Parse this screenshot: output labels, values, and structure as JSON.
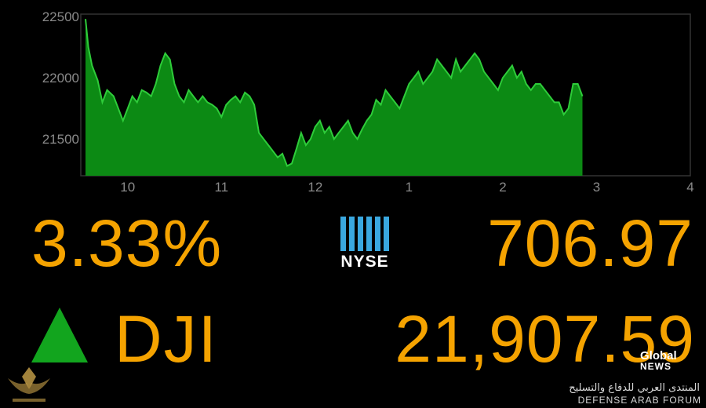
{
  "chart_data": {
    "type": "area",
    "x_unit": "hour",
    "x_ticks": [
      10,
      11,
      12,
      1,
      2,
      3,
      4
    ],
    "y_ticks": [
      21500,
      22000,
      22500
    ],
    "ylim": [
      21200,
      22520
    ],
    "grid": false,
    "series": [
      {
        "color": "#0c8a14",
        "x": [
          9.55,
          9.58,
          9.62,
          9.68,
          9.73,
          9.78,
          9.85,
          9.9,
          9.95,
          10.0,
          10.05,
          10.1,
          10.15,
          10.2,
          10.25,
          10.3,
          10.35,
          10.4,
          10.45,
          10.5,
          10.55,
          10.6,
          10.65,
          10.7,
          10.75,
          10.8,
          10.85,
          10.9,
          10.95,
          11.0,
          11.05,
          11.1,
          11.15,
          11.2,
          11.25,
          11.3,
          11.35,
          11.4,
          11.45,
          11.5,
          11.55,
          11.6,
          11.65,
          11.7,
          11.75,
          11.8,
          11.85,
          11.9,
          11.95,
          12.0,
          12.05,
          12.1,
          12.15,
          12.2,
          12.25,
          12.3,
          12.35,
          12.4,
          12.45,
          12.5,
          12.55,
          12.6,
          12.65,
          12.7,
          12.75,
          12.8,
          12.85,
          12.9,
          12.95,
          13.0,
          13.05,
          13.1,
          13.15,
          13.2,
          13.25,
          13.3,
          13.35,
          13.4,
          13.45,
          13.5,
          13.55,
          13.6,
          13.65,
          13.7,
          13.75,
          13.8,
          13.85,
          13.9,
          13.95,
          14.0,
          14.05,
          14.1,
          14.15,
          14.2,
          14.25,
          14.3,
          14.35,
          14.4,
          14.45,
          14.5,
          14.55,
          14.6,
          14.65,
          14.7,
          14.75,
          14.8,
          14.85
        ],
        "values": [
          22480,
          22250,
          22100,
          21980,
          21800,
          21900,
          21850,
          21750,
          21650,
          21750,
          21850,
          21800,
          21900,
          21880,
          21850,
          21950,
          22100,
          22200,
          22150,
          21950,
          21850,
          21800,
          21900,
          21850,
          21800,
          21850,
          21800,
          21780,
          21750,
          21680,
          21780,
          21820,
          21850,
          21800,
          21880,
          21850,
          21780,
          21550,
          21500,
          21450,
          21400,
          21350,
          21380,
          21280,
          21300,
          21420,
          21550,
          21450,
          21500,
          21600,
          21650,
          21550,
          21600,
          21500,
          21550,
          21600,
          21650,
          21550,
          21500,
          21580,
          21650,
          21700,
          21820,
          21780,
          21900,
          21850,
          21800,
          21750,
          21850,
          21950,
          22000,
          22050,
          21950,
          22000,
          22050,
          22150,
          22100,
          22050,
          22000,
          22150,
          22050,
          22100,
          22150,
          22200,
          22150,
          22050,
          22000,
          21950,
          21900,
          22000,
          22050,
          22100,
          22000,
          22050,
          21950,
          21900,
          21950,
          21950,
          21900,
          21850,
          21800,
          21800,
          21700,
          21750,
          21950,
          21950,
          21850
        ]
      }
    ]
  },
  "change_percent": "3.33%",
  "points_change": "706.97",
  "exchange_logo_text": "NYSE",
  "index_name": "DJI",
  "index_level": "21,907.59",
  "direction": "up",
  "colors": {
    "value_text": "#f5a300",
    "area_fill": "#0c8a14",
    "area_line": "#2ecc3a",
    "up_arrow": "#12a51e",
    "nyse_blue": "#3aa8e0"
  },
  "watermarks": {
    "broadcaster_line1": "Global",
    "broadcaster_line2": "NEWS",
    "forum_arabic": "المنتدى العربي للدفاع والتسليح",
    "forum_english": "DEFENSE ARAB FORUM"
  }
}
